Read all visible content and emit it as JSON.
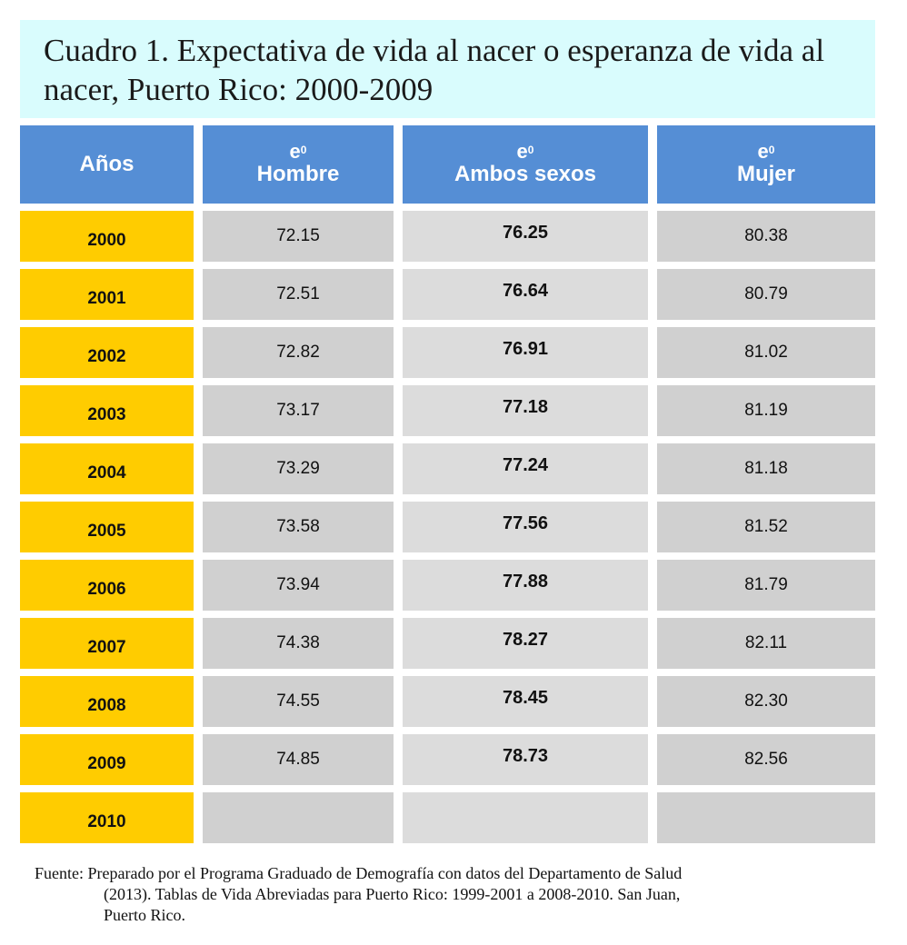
{
  "title": "Cuadro 1. Expectativa de vida al nacer o esperanza de vida al nacer, Puerto Rico: 2000-2009",
  "table": {
    "headers": [
      {
        "symbol": "",
        "sup": "",
        "label": "Años"
      },
      {
        "symbol": "e",
        "sup": "0",
        "label": "Hombre"
      },
      {
        "symbol": "e",
        "sup": "0",
        "label": "Ambos sexos"
      },
      {
        "symbol": "e",
        "sup": "0",
        "label": "Mujer"
      }
    ],
    "rows": [
      {
        "year": "2000",
        "hombre": "72.15",
        "ambos": "76.25",
        "mujer": "80.38"
      },
      {
        "year": "2001",
        "hombre": "72.51",
        "ambos": "76.64",
        "mujer": "80.79"
      },
      {
        "year": "2002",
        "hombre": "72.82",
        "ambos": "76.91",
        "mujer": "81.02"
      },
      {
        "year": "2003",
        "hombre": "73.17",
        "ambos": "77.18",
        "mujer": "81.19"
      },
      {
        "year": "2004",
        "hombre": "73.29",
        "ambos": "77.24",
        "mujer": "81.18"
      },
      {
        "year": "2005",
        "hombre": "73.58",
        "ambos": "77.56",
        "mujer": "81.52"
      },
      {
        "year": "2006",
        "hombre": "73.94",
        "ambos": "77.88",
        "mujer": "81.79"
      },
      {
        "year": "2007",
        "hombre": "74.38",
        "ambos": "78.27",
        "mujer": "82.11"
      },
      {
        "year": "2008",
        "hombre": "74.55",
        "ambos": "78.45",
        "mujer": "82.30"
      },
      {
        "year": "2009",
        "hombre": "74.85",
        "ambos": "78.73",
        "mujer": "82.56"
      },
      {
        "year": "2010",
        "hombre": "",
        "ambos": "",
        "mujer": ""
      }
    ]
  },
  "source": {
    "label": "Fuente:",
    "line1": "Preparado por el Programa Graduado de Demografía con datos del Departamento de Salud",
    "line2": "(2013). Tablas de Vida Abreviadas para Puerto Rico: 1999-2001 a  2008-2010. San Juan,",
    "line3": "Puerto Rico."
  },
  "colors": {
    "title_background": "#d9fcfd",
    "header_background": "#558ed5",
    "year_background": "#ffcc00",
    "value_background": "#d0d0d0"
  }
}
